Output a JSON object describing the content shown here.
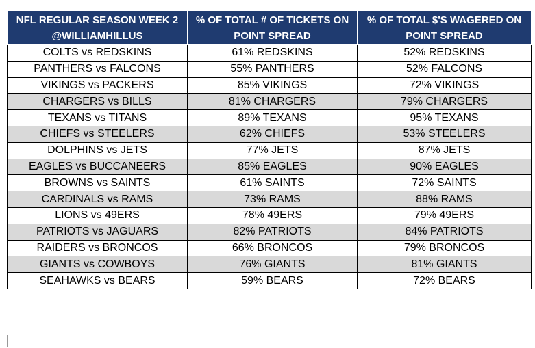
{
  "header": {
    "col1_line1": "NFL REGULAR SEASON WEEK 2",
    "col1_line2": "@WILLIAMHILLUS",
    "col2_line1": "% OF TOTAL # OF TICKETS ON",
    "col2_line2": "POINT SPREAD",
    "col3_line1": "% OF TOTAL $'S WAGERED ON",
    "col3_line2": "POINT SPREAD"
  },
  "rows": [
    {
      "matchup": "COLTS vs REDSKINS",
      "tickets": "61% REDSKINS",
      "wagered": "52% REDSKINS"
    },
    {
      "matchup": "PANTHERS vs FALCONS",
      "tickets": "55% PANTHERS",
      "wagered": "52% FALCONS"
    },
    {
      "matchup": "VIKINGS vs PACKERS",
      "tickets": "85% VIKINGS",
      "wagered": "72% VIKINGS"
    },
    {
      "matchup": "CHARGERS vs BILLS",
      "tickets": "81% CHARGERS",
      "wagered": "79% CHARGERS"
    },
    {
      "matchup": "TEXANS vs TITANS",
      "tickets": "89% TEXANS",
      "wagered": "95% TEXANS"
    },
    {
      "matchup": "CHIEFS vs STEELERS",
      "tickets": "62% CHIEFS",
      "wagered": "53% STEELERS"
    },
    {
      "matchup": "DOLPHINS vs JETS",
      "tickets": "77% JETS",
      "wagered": "87% JETS"
    },
    {
      "matchup": "EAGLES vs BUCCANEERS",
      "tickets": "85% EAGLES",
      "wagered": "90% EAGLES"
    },
    {
      "matchup": "BROWNS vs SAINTS",
      "tickets": "61% SAINTS",
      "wagered": "72% SAINTS"
    },
    {
      "matchup": "CARDINALS vs RAMS",
      "tickets": "73% RAMS",
      "wagered": "88% RAMS"
    },
    {
      "matchup": "LIONS vs 49ERS",
      "tickets": "78% 49ERS",
      "wagered": "79% 49ERS"
    },
    {
      "matchup": "PATRIOTS vs JAGUARS",
      "tickets": "82% PATRIOTS",
      "wagered": "84% PATRIOTS"
    },
    {
      "matchup": "RAIDERS vs BRONCOS",
      "tickets": "66% BRONCOS",
      "wagered": "79% BRONCOS"
    },
    {
      "matchup": "GIANTS vs COWBOYS",
      "tickets": "76% GIANTS",
      "wagered": "81% GIANTS"
    },
    {
      "matchup": "SEAHAWKS vs BEARS",
      "tickets": "59% BEARS",
      "wagered": "72% BEARS"
    }
  ],
  "colors": {
    "header_bg": "#1f3b70",
    "header_text": "#ffffff",
    "shaded_row": "#d9d9d9"
  }
}
